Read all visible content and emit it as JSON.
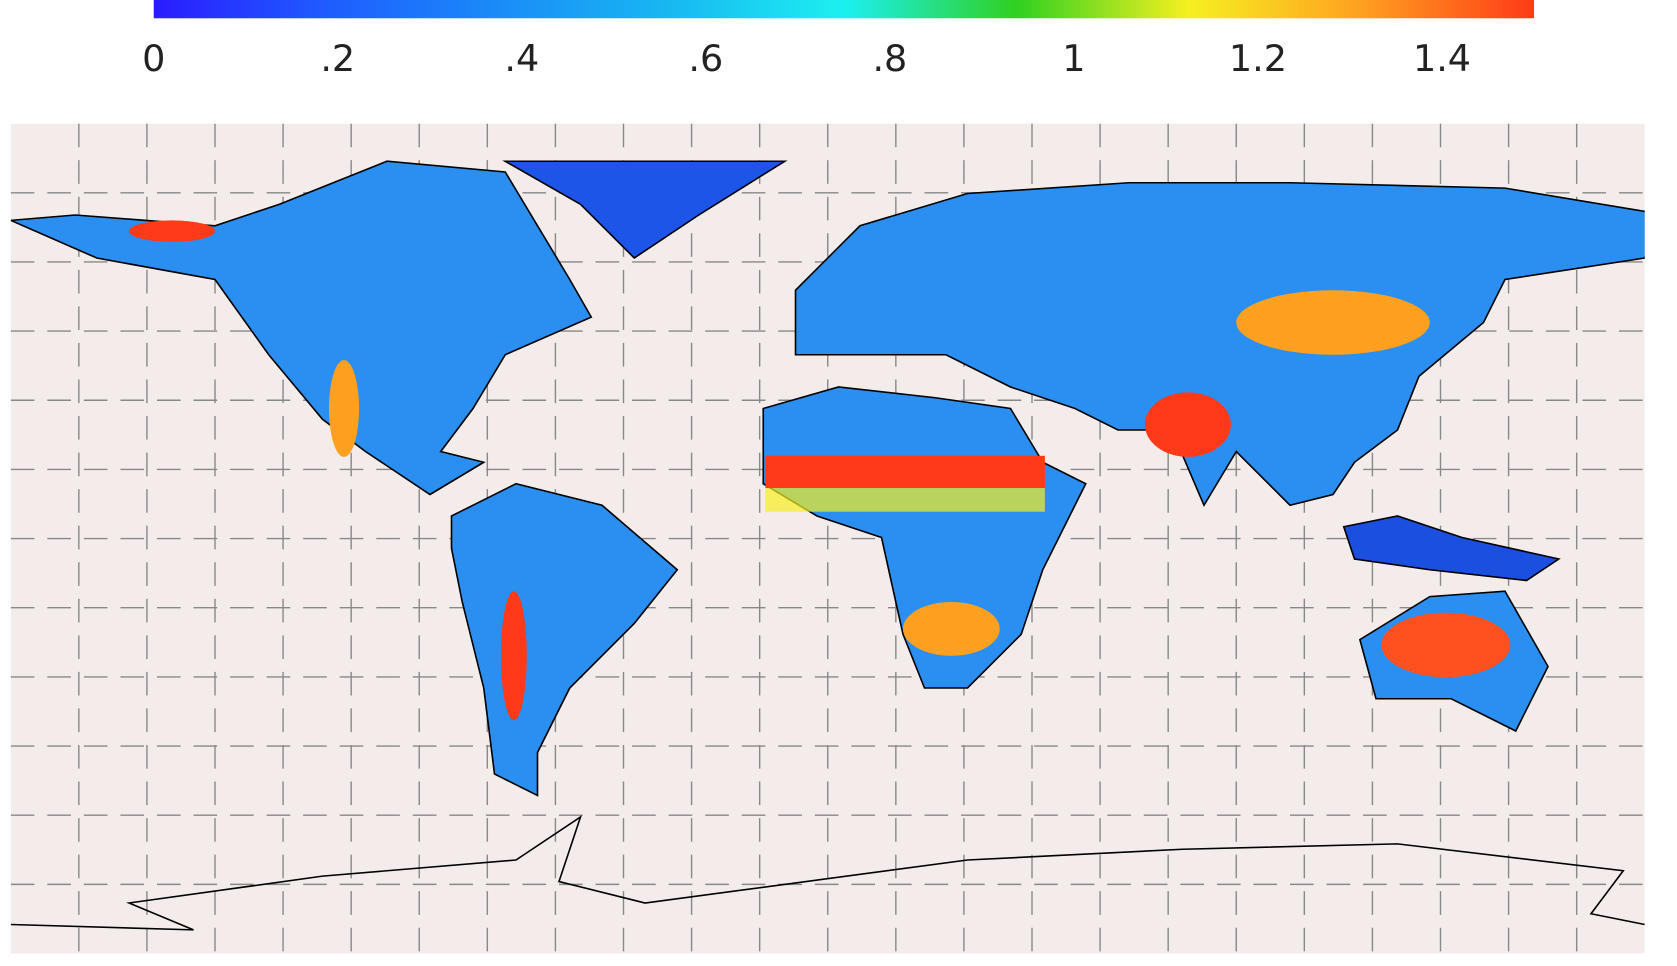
{
  "colorbar": {
    "lim": [
      0,
      1.5
    ],
    "ticks": [
      0,
      {
        "value": 0.2,
        "label": ".2"
      },
      {
        "value": 0.4,
        "label": ".4"
      },
      {
        "value": 0.6,
        "label": ".6"
      },
      {
        "value": 0.8,
        "label": ".8"
      },
      1,
      1.2,
      1.4
    ],
    "colors": [
      "#2a1cff",
      "#1f5cff",
      "#1a8cf8",
      "#18b8f2",
      "#1cf0f0",
      "#30d020",
      "#f6f020",
      "#ffa020",
      "#ff3a18"
    ]
  }
}
